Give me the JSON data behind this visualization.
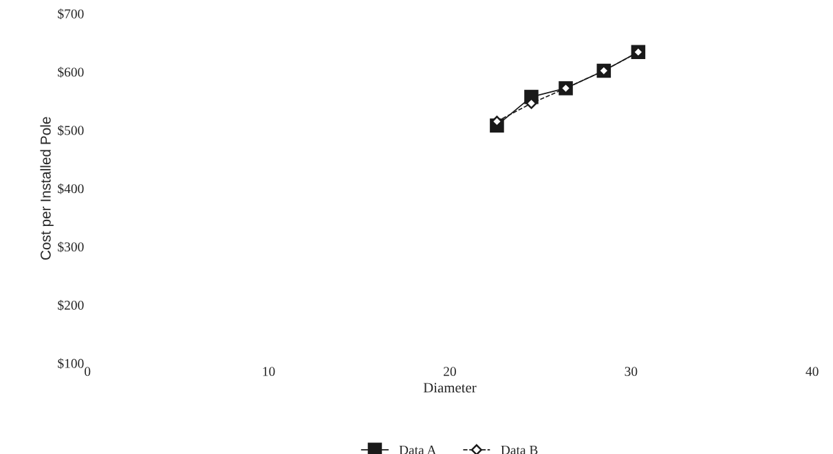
{
  "chart_data": {
    "type": "line",
    "xlabel": "Diameter",
    "ylabel": "Cost per Installed Pole",
    "x": [
      22.6,
      24.5,
      26.4,
      28.5,
      30.4
    ],
    "series": [
      {
        "name": "Data A",
        "color": "#1a1a1a",
        "values": [
          508,
          557,
          572,
          602,
          634
        ],
        "marker": "square",
        "line_style": "solid"
      },
      {
        "name": "Data B",
        "color": "#1a1a1a",
        "values": [
          515,
          546,
          572,
          602,
          634
        ],
        "marker": "diamond",
        "line_style": "dashed"
      }
    ],
    "xlim": [
      0,
      40
    ],
    "xticks": [
      0,
      10,
      20,
      30,
      40
    ],
    "ylim": [
      100,
      700
    ],
    "yticks": [
      {
        "value": 100,
        "label": "$100"
      },
      {
        "value": 200,
        "label": "$200"
      },
      {
        "value": 300,
        "label": "$300"
      },
      {
        "value": 400,
        "label": "$400"
      },
      {
        "value": 500,
        "label": "$500"
      },
      {
        "value": 600,
        "label": "$600"
      },
      {
        "value": 700,
        "label": "$700"
      }
    ],
    "grid": false,
    "legend": "bottom"
  }
}
